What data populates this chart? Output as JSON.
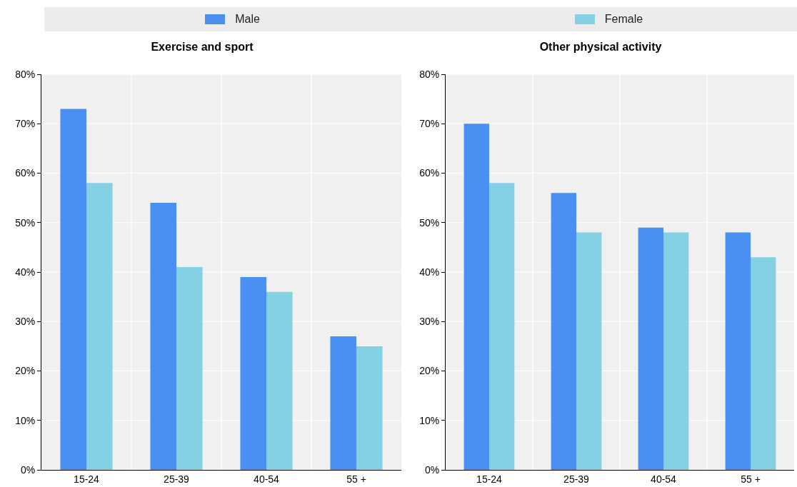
{
  "chart_data": [
    {
      "type": "bar",
      "title": "Exercise and sport",
      "categories": [
        "15-24",
        "25-39",
        "40-54",
        "55 +"
      ],
      "series": [
        {
          "name": "Male",
          "color": "#4a8ff2",
          "values": [
            73,
            54,
            39,
            27
          ]
        },
        {
          "name": "Female",
          "color": "#84d1e3",
          "values": [
            58,
            41,
            36,
            25
          ]
        }
      ],
      "ylim": [
        0,
        80
      ],
      "yticks": [
        {
          "value": 0,
          "label": "0%"
        },
        {
          "value": 10,
          "label": "10%"
        },
        {
          "value": 20,
          "label": "20%"
        },
        {
          "value": 30,
          "label": "30%"
        },
        {
          "value": 40,
          "label": "40%"
        },
        {
          "value": 50,
          "label": "50%"
        },
        {
          "value": 60,
          "label": "60%"
        },
        {
          "value": 70,
          "label": "70%"
        },
        {
          "value": 80,
          "label": "80%"
        }
      ],
      "grid": true,
      "legend": "top"
    },
    {
      "type": "bar",
      "title": "Other physical activity",
      "categories": [
        "15-24",
        "25-39",
        "40-54",
        "55 +"
      ],
      "series": [
        {
          "color": "#4a8ff2",
          "values": [
            70,
            56,
            49,
            48
          ]
        },
        {
          "color": "#84d1e3",
          "values": [
            58,
            48,
            48,
            43
          ]
        }
      ],
      "ylim": [
        0,
        80
      ],
      "yticks": [
        {
          "value": 0,
          "label": "0%"
        },
        {
          "value": 10,
          "label": "10%"
        },
        {
          "value": 20,
          "label": "20%"
        },
        {
          "value": 30,
          "label": "30%"
        },
        {
          "value": 40,
          "label": "40%"
        },
        {
          "value": 50,
          "label": "50%"
        },
        {
          "value": 60,
          "label": "60%"
        },
        {
          "value": 70,
          "label": "70%"
        },
        {
          "value": 80,
          "label": "80%"
        }
      ],
      "grid": true
    }
  ]
}
